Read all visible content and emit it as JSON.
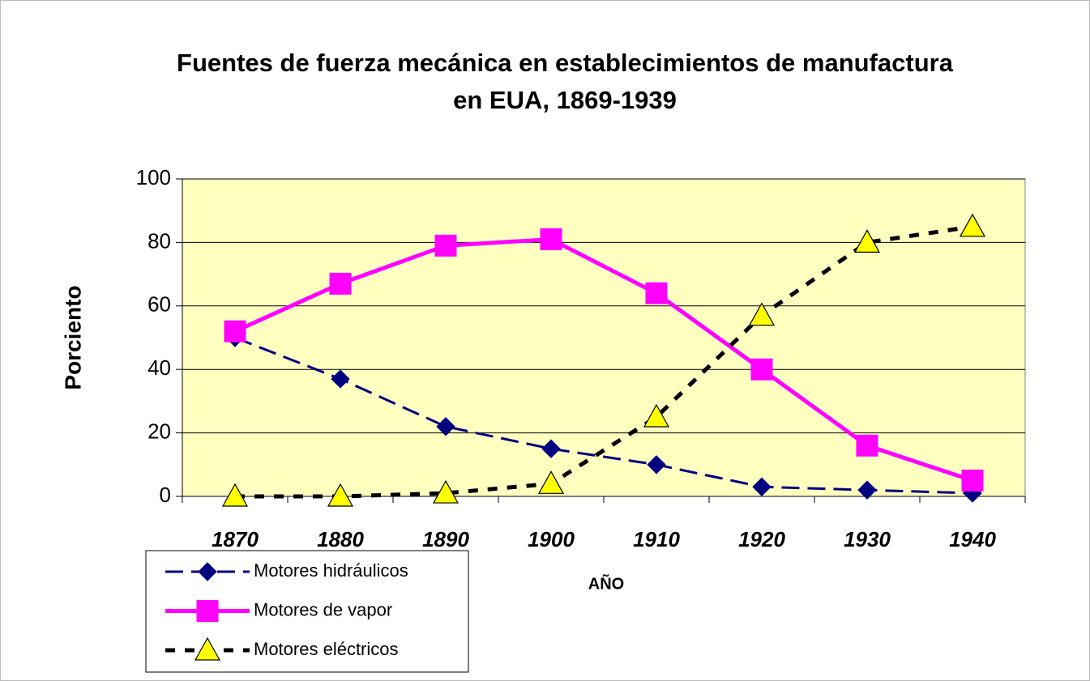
{
  "chart_data": {
    "type": "line",
    "title": "Fuentes de fuerza mecánica en establecimientos de manufactura en EUA, 1869-1939",
    "x_label": "AÑO",
    "y_label": "Porciento",
    "categories": [
      "1870",
      "1880",
      "1890",
      "1900",
      "1910",
      "1920",
      "1930",
      "1940"
    ],
    "series": [
      {
        "name": "Motores hidráulicos",
        "color": "#000080",
        "dash": "long-dash",
        "marker": "diamond",
        "values": [
          50,
          37,
          22,
          15,
          10,
          3,
          2,
          1
        ]
      },
      {
        "name": "Motores de vapor",
        "color": "#ff00ff",
        "dash": "solid",
        "marker": "square",
        "values": [
          52,
          67,
          79,
          81,
          64,
          40,
          16,
          5
        ]
      },
      {
        "name": "Motores eléctricos",
        "color": "#000000",
        "dash": "short-dash",
        "marker": "triangle",
        "marker_color": "#ffff00",
        "values": [
          0,
          0,
          1,
          4,
          25,
          57,
          80,
          85
        ]
      }
    ],
    "ylim": [
      0,
      100
    ],
    "yticks": [
      0,
      20,
      40,
      60,
      80,
      100
    ],
    "grid": true,
    "plot_background": "#ffffc0",
    "legend": "bottom-left"
  }
}
